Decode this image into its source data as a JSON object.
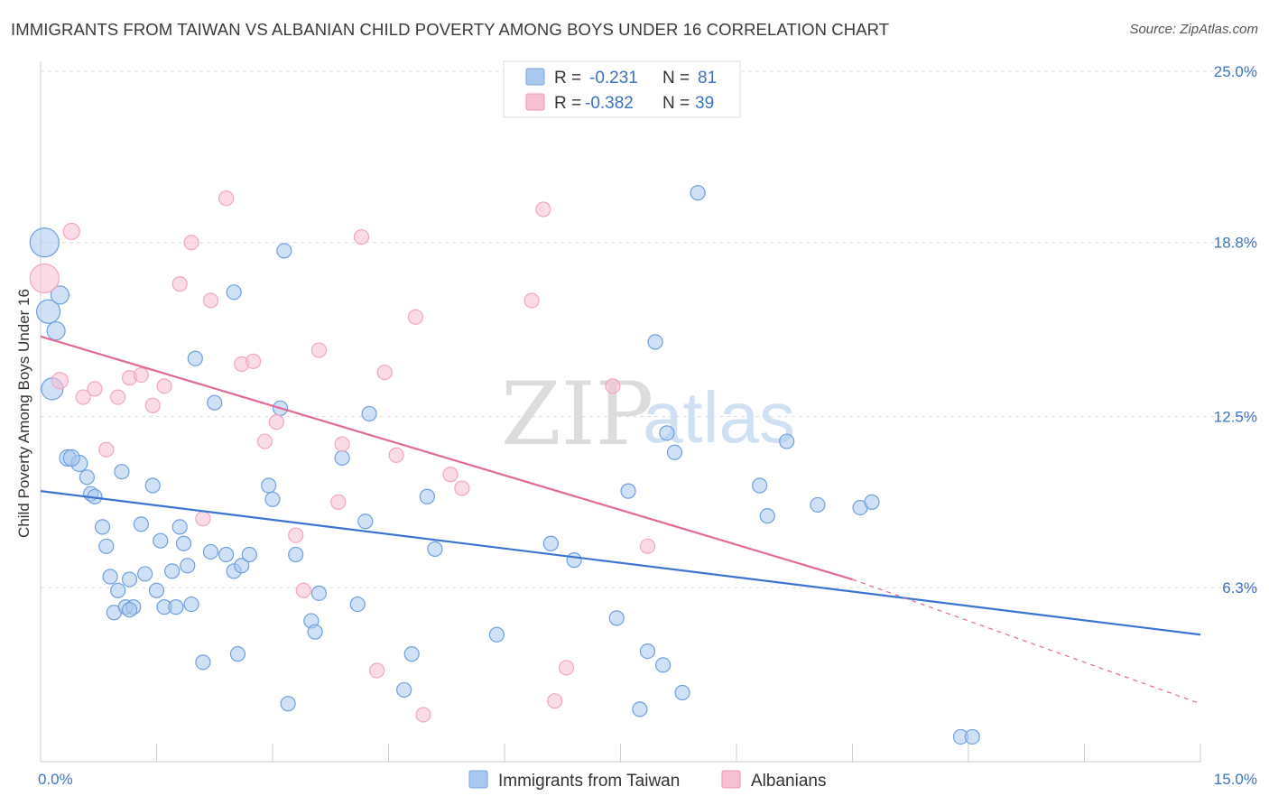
{
  "title": "IMMIGRANTS FROM TAIWAN VS ALBANIAN CHILD POVERTY AMONG BOYS UNDER 16 CORRELATION CHART",
  "source": "Source: ZipAtlas.com",
  "watermark": {
    "zip": "ZIP",
    "atlas": "atlas"
  },
  "legend_top": {
    "rows": [
      {
        "r_label": "R =",
        "r_value": "-0.231",
        "n_label": "N =",
        "n_value": "81",
        "color": "#a9c8f0",
        "stroke": "#7aa7e0"
      },
      {
        "r_label": "R =",
        "r_value": "-0.382",
        "n_label": "N =",
        "n_value": "39",
        "color": "#f7c0d2",
        "stroke": "#ee9ab5"
      }
    ]
  },
  "legend_bottom": [
    {
      "label": "Immigrants from Taiwan",
      "color": "#a9c8f0",
      "stroke": "#7aa7e0"
    },
    {
      "label": "Albanians",
      "color": "#f7c0d2",
      "stroke": "#ee9ab5"
    }
  ],
  "chart_data": {
    "type": "scatter",
    "title": "IMMIGRANTS FROM TAIWAN VS ALBANIAN CHILD POVERTY AMONG BOYS UNDER 16 CORRELATION CHART",
    "xlabel": "",
    "ylabel": "Child Poverty Among Boys Under 16",
    "xlim": [
      0,
      15
    ],
    "ylim": [
      0,
      25
    ],
    "x_tick_labels": [
      "0.0%",
      "15.0%"
    ],
    "y_ticks": [
      6.3,
      12.5,
      18.8,
      25.0
    ],
    "y_tick_labels": [
      "6.3%",
      "12.5%",
      "18.8%",
      "25.0%"
    ],
    "grid": true,
    "legend_position": "top-center",
    "series": [
      {
        "name": "Immigrants from Taiwan",
        "color": "#6fa0de",
        "trend": {
          "x": [
            0.0,
            15.0
          ],
          "y": [
            9.8,
            4.6
          ],
          "color": "#3b73d1"
        },
        "points": [
          [
            0.05,
            18.8,
            16
          ],
          [
            0.1,
            16.3,
            13
          ],
          [
            0.15,
            13.5,
            12
          ],
          [
            0.25,
            16.9,
            10
          ],
          [
            0.2,
            15.6,
            10
          ],
          [
            0.35,
            11.0,
            9
          ],
          [
            0.5,
            10.8,
            9
          ],
          [
            0.4,
            11.0,
            9
          ],
          [
            0.6,
            10.3,
            8
          ],
          [
            0.65,
            9.7,
            8
          ],
          [
            0.7,
            9.6,
            8
          ],
          [
            0.8,
            8.5,
            8
          ],
          [
            0.85,
            7.8,
            8
          ],
          [
            0.9,
            6.7,
            8
          ],
          [
            0.95,
            5.4,
            8
          ],
          [
            1.0,
            6.2,
            8
          ],
          [
            1.05,
            10.5,
            8
          ],
          [
            1.1,
            5.6,
            8
          ],
          [
            1.15,
            6.6,
            8
          ],
          [
            1.2,
            5.6,
            8
          ],
          [
            1.3,
            8.6,
            8
          ],
          [
            1.35,
            6.8,
            8
          ],
          [
            1.45,
            10.0,
            8
          ],
          [
            1.5,
            6.2,
            8
          ],
          [
            1.55,
            8.0,
            8
          ],
          [
            1.6,
            5.6,
            8
          ],
          [
            1.7,
            6.9,
            8
          ],
          [
            1.75,
            5.6,
            8
          ],
          [
            1.8,
            8.5,
            8
          ],
          [
            1.85,
            7.9,
            8
          ],
          [
            1.9,
            7.1,
            8
          ],
          [
            1.95,
            5.7,
            8
          ],
          [
            2.0,
            14.6,
            8
          ],
          [
            2.1,
            3.6,
            8
          ],
          [
            2.2,
            7.6,
            8
          ],
          [
            2.25,
            13.0,
            8
          ],
          [
            2.4,
            7.5,
            8
          ],
          [
            2.5,
            6.9,
            8
          ],
          [
            2.55,
            3.9,
            8
          ],
          [
            2.6,
            7.1,
            8
          ],
          [
            2.7,
            7.5,
            8
          ],
          [
            2.5,
            17.0,
            8
          ],
          [
            2.95,
            10.0,
            8
          ],
          [
            3.0,
            9.5,
            8
          ],
          [
            3.1,
            12.8,
            8
          ],
          [
            3.15,
            18.5,
            8
          ],
          [
            3.2,
            2.1,
            8
          ],
          [
            3.3,
            7.5,
            8
          ],
          [
            3.5,
            5.1,
            8
          ],
          [
            3.55,
            4.7,
            8
          ],
          [
            3.6,
            6.1,
            8
          ],
          [
            3.9,
            11.0,
            8
          ],
          [
            4.1,
            5.7,
            8
          ],
          [
            4.2,
            8.7,
            8
          ],
          [
            4.25,
            12.6,
            8
          ],
          [
            4.7,
            2.6,
            8
          ],
          [
            4.8,
            3.9,
            8
          ],
          [
            5.0,
            9.6,
            8
          ],
          [
            5.1,
            7.7,
            8
          ],
          [
            5.9,
            4.6,
            8
          ],
          [
            6.6,
            7.9,
            8
          ],
          [
            6.9,
            7.3,
            8
          ],
          [
            7.45,
            5.2,
            8
          ],
          [
            7.6,
            9.8,
            8
          ],
          [
            7.75,
            1.9,
            8
          ],
          [
            7.85,
            4.0,
            8
          ],
          [
            7.95,
            15.2,
            8
          ],
          [
            8.05,
            3.5,
            8
          ],
          [
            8.1,
            11.9,
            8
          ],
          [
            8.2,
            11.2,
            8
          ],
          [
            8.3,
            2.5,
            8
          ],
          [
            8.5,
            20.6,
            8
          ],
          [
            9.3,
            10.0,
            8
          ],
          [
            9.4,
            8.9,
            8
          ],
          [
            9.65,
            11.6,
            8
          ],
          [
            10.05,
            9.3,
            8
          ],
          [
            10.6,
            9.2,
            8
          ],
          [
            10.75,
            9.4,
            8
          ],
          [
            11.9,
            0.9,
            8
          ],
          [
            12.05,
            0.9,
            8
          ],
          [
            1.15,
            5.5,
            8
          ]
        ]
      },
      {
        "name": "Albanians",
        "color": "#f2a6bf",
        "trend": {
          "x": [
            0.0,
            10.5
          ],
          "y": [
            15.4,
            6.6
          ],
          "dashed_extension": {
            "x": [
              10.5,
              15.0
            ],
            "y": [
              6.6,
              2.1
            ]
          },
          "color": "#e26a94"
        },
        "points": [
          [
            0.05,
            17.5,
            16
          ],
          [
            0.4,
            19.2,
            9
          ],
          [
            0.25,
            13.8,
            9
          ],
          [
            0.55,
            13.2,
            8
          ],
          [
            0.7,
            13.5,
            8
          ],
          [
            0.85,
            11.3,
            8
          ],
          [
            1.0,
            13.2,
            8
          ],
          [
            1.15,
            13.9,
            8
          ],
          [
            1.3,
            14.0,
            8
          ],
          [
            1.45,
            12.9,
            8
          ],
          [
            1.6,
            13.6,
            8
          ],
          [
            1.8,
            17.3,
            8
          ],
          [
            1.95,
            18.8,
            8
          ],
          [
            2.1,
            8.8,
            8
          ],
          [
            2.2,
            16.7,
            8
          ],
          [
            2.4,
            20.4,
            8
          ],
          [
            2.6,
            14.4,
            8
          ],
          [
            2.75,
            14.5,
            8
          ],
          [
            2.9,
            11.6,
            8
          ],
          [
            3.05,
            12.3,
            8
          ],
          [
            3.3,
            8.2,
            8
          ],
          [
            3.4,
            6.2,
            8
          ],
          [
            3.6,
            14.9,
            8
          ],
          [
            3.85,
            9.4,
            8
          ],
          [
            3.9,
            11.5,
            8
          ],
          [
            4.15,
            19.0,
            8
          ],
          [
            4.35,
            3.3,
            8
          ],
          [
            4.45,
            14.1,
            8
          ],
          [
            4.6,
            11.1,
            8
          ],
          [
            4.85,
            16.1,
            8
          ],
          [
            4.95,
            1.7,
            8
          ],
          [
            5.3,
            10.4,
            8
          ],
          [
            5.45,
            9.9,
            8
          ],
          [
            6.35,
            16.7,
            8
          ],
          [
            6.5,
            20.0,
            8
          ],
          [
            6.65,
            2.2,
            8
          ],
          [
            6.8,
            3.4,
            8
          ],
          [
            7.4,
            13.6,
            8
          ],
          [
            7.85,
            7.8,
            8
          ]
        ]
      }
    ]
  }
}
